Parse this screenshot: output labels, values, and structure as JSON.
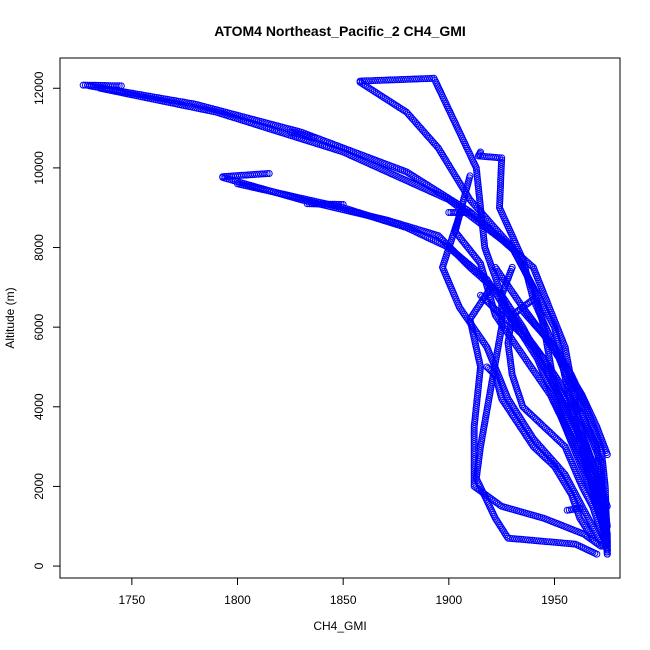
{
  "chart_data": {
    "type": "scatter",
    "title": "ATOM4 Northeast_Pacific_2 CH4_GMI",
    "xlabel": "CH4_GMI",
    "ylabel": "Altitude (m)",
    "xlim": [
      1716,
      1981
    ],
    "ylim": [
      -300,
      12760
    ],
    "x_ticks": [
      "1750",
      "1800",
      "1850",
      "1900",
      "1950"
    ],
    "y_ticks": [
      "0",
      "2000",
      "4000",
      "6000",
      "8000",
      "10000",
      "12000"
    ],
    "grid": false,
    "marker": "open-circle",
    "color": "#0000ff",
    "tracks": [
      [
        [
          1727,
          12080
        ],
        [
          1745,
          12060
        ]
      ],
      [
        [
          1730,
          12060
        ],
        [
          1780,
          11600
        ],
        [
          1830,
          10900
        ],
        [
          1880,
          9900
        ],
        [
          1910,
          8900
        ],
        [
          1940,
          7500
        ],
        [
          1955,
          5500
        ],
        [
          1962,
          3500
        ],
        [
          1970,
          1800
        ],
        [
          1975,
          800
        ],
        [
          1975,
          300
        ]
      ],
      [
        [
          1735,
          12000
        ],
        [
          1790,
          11400
        ],
        [
          1850,
          10400
        ],
        [
          1900,
          9200
        ],
        [
          1930,
          8000
        ],
        [
          1950,
          6000
        ],
        [
          1958,
          4000
        ],
        [
          1965,
          2500
        ],
        [
          1972,
          1200
        ],
        [
          1975,
          400
        ]
      ],
      [
        [
          1825,
          10900
        ],
        [
          1836,
          10750
        ]
      ],
      [
        [
          1858,
          12180
        ],
        [
          1893,
          12250
        ],
        [
          1913,
          10000
        ],
        [
          1917,
          8000
        ],
        [
          1927,
          6500
        ],
        [
          1945,
          5200
        ],
        [
          1962,
          3500
        ],
        [
          1972,
          2000
        ],
        [
          1975,
          600
        ]
      ],
      [
        [
          1858,
          12150
        ],
        [
          1880,
          11400
        ],
        [
          1895,
          10500
        ],
        [
          1910,
          9200
        ],
        [
          1930,
          8000
        ],
        [
          1940,
          7000
        ],
        [
          1945,
          6000
        ],
        [
          1950,
          4500
        ],
        [
          1963,
          3000
        ],
        [
          1973,
          1500
        ],
        [
          1975,
          300
        ]
      ],
      [
        [
          1793,
          9780
        ],
        [
          1815,
          9860
        ]
      ],
      [
        [
          1793,
          9760
        ],
        [
          1830,
          9200
        ],
        [
          1870,
          8700
        ],
        [
          1895,
          8300
        ],
        [
          1910,
          7500
        ],
        [
          1925,
          6800
        ],
        [
          1935,
          6000
        ],
        [
          1945,
          5000
        ],
        [
          1955,
          4000
        ],
        [
          1965,
          3000
        ],
        [
          1975,
          1500
        ]
      ],
      [
        [
          1800,
          9600
        ],
        [
          1850,
          9000
        ],
        [
          1880,
          8500
        ],
        [
          1900,
          8000
        ],
        [
          1918,
          7200
        ],
        [
          1930,
          6200
        ],
        [
          1942,
          5200
        ],
        [
          1955,
          3500
        ],
        [
          1965,
          2200
        ],
        [
          1973,
          1000
        ]
      ],
      [
        [
          1833,
          9100
        ],
        [
          1850,
          9080
        ]
      ],
      [
        [
          1900,
          8880
        ],
        [
          1910,
          8880
        ]
      ],
      [
        [
          1915,
          10400
        ],
        [
          1914,
          10300
        ],
        [
          1925,
          10250
        ],
        [
          1924,
          9000
        ],
        [
          1935,
          7700
        ],
        [
          1940,
          6700
        ],
        [
          1950,
          5500
        ],
        [
          1960,
          4200
        ],
        [
          1972,
          2600
        ],
        [
          1974,
          500
        ]
      ],
      [
        [
          1910,
          9800
        ],
        [
          1903,
          8400
        ],
        [
          1915,
          7600
        ],
        [
          1922,
          6300
        ],
        [
          1935,
          5300
        ],
        [
          1948,
          4300
        ],
        [
          1958,
          3200
        ],
        [
          1970,
          1800
        ],
        [
          1974,
          1000
        ]
      ],
      [
        [
          1905,
          8800
        ],
        [
          1897,
          7500
        ],
        [
          1905,
          6500
        ],
        [
          1918,
          5500
        ],
        [
          1928,
          4200
        ],
        [
          1940,
          3200
        ],
        [
          1955,
          2300
        ],
        [
          1966,
          1200
        ],
        [
          1973,
          500
        ]
      ],
      [
        [
          1920,
          7000
        ],
        [
          1910,
          6200
        ],
        [
          1915,
          5000
        ],
        [
          1912,
          3500
        ],
        [
          1912,
          2000
        ],
        [
          1925,
          1500
        ],
        [
          1945,
          1200
        ],
        [
          1964,
          800
        ],
        [
          1972,
          500
        ]
      ],
      [
        [
          1930,
          7500
        ],
        [
          1925,
          6800
        ],
        [
          1925,
          6000
        ],
        [
          1920,
          4500
        ],
        [
          1915,
          3000
        ],
        [
          1913,
          2200
        ],
        [
          1922,
          1200
        ],
        [
          1928,
          700
        ],
        [
          1960,
          550
        ],
        [
          1970,
          300
        ]
      ],
      [
        [
          1922,
          7500
        ],
        [
          1935,
          6500
        ],
        [
          1942,
          6000
        ],
        [
          1950,
          5500
        ],
        [
          1958,
          4800
        ],
        [
          1965,
          4000
        ],
        [
          1972,
          3000
        ],
        [
          1974,
          2000
        ],
        [
          1975,
          500
        ]
      ],
      [
        [
          1915,
          6800
        ],
        [
          1925,
          6300
        ],
        [
          1935,
          5800
        ],
        [
          1945,
          5200
        ],
        [
          1955,
          4400
        ],
        [
          1963,
          3800
        ],
        [
          1970,
          3000
        ],
        [
          1972,
          2200
        ],
        [
          1975,
          1000
        ]
      ],
      [
        [
          1940,
          6700
        ],
        [
          1930,
          6300
        ],
        [
          1928,
          5600
        ],
        [
          1930,
          4800
        ],
        [
          1935,
          4000
        ],
        [
          1945,
          3500
        ],
        [
          1955,
          3000
        ],
        [
          1963,
          2000
        ],
        [
          1968,
          1500
        ],
        [
          1975,
          400
        ]
      ],
      [
        [
          1918,
          5000
        ],
        [
          1922,
          4800
        ],
        [
          1925,
          4200
        ],
        [
          1930,
          3800
        ],
        [
          1940,
          3000
        ],
        [
          1950,
          2500
        ],
        [
          1958,
          1800
        ],
        [
          1962,
          1200
        ],
        [
          1968,
          700
        ]
      ],
      [
        [
          1935,
          6400
        ],
        [
          1945,
          5800
        ],
        [
          1955,
          5000
        ],
        [
          1963,
          4300
        ],
        [
          1970,
          3500
        ],
        [
          1975,
          2800
        ]
      ],
      [
        [
          1956,
          1400
        ],
        [
          1962,
          1450
        ]
      ]
    ]
  }
}
